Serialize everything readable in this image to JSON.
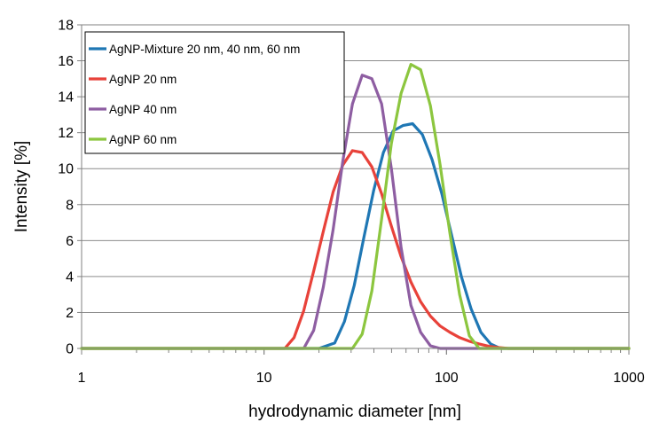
{
  "chart_data": {
    "type": "line",
    "xscale": "log",
    "xlabel": "hydrodynamic diameter [nm]",
    "ylabel": "Intensity [%]",
    "xlim": [
      1,
      1000
    ],
    "ylim": [
      0,
      18
    ],
    "xticks": [
      1,
      10,
      100,
      1000
    ],
    "xtick_labels": [
      "1",
      "10",
      "100",
      "1000"
    ],
    "yticks": [
      0,
      2,
      4,
      6,
      8,
      10,
      12,
      14,
      16,
      18
    ],
    "ytick_labels": [
      "0",
      "2",
      "4",
      "6",
      "8",
      "10",
      "12",
      "14",
      "16",
      "18"
    ],
    "grid": "horizontal",
    "legend_position": "top-left",
    "series": [
      {
        "name": "AgNP-Mixture 20 nm, 40 nm, 60 nm",
        "color": "#1f77b4",
        "points": [
          [
            1,
            0
          ],
          [
            20,
            0
          ],
          [
            24.4,
            0.3
          ],
          [
            27.6,
            1.5
          ],
          [
            31.2,
            3.5
          ],
          [
            35.3,
            6.2
          ],
          [
            39.9,
            8.8
          ],
          [
            45.1,
            10.9
          ],
          [
            51,
            12.1
          ],
          [
            57.7,
            12.4
          ],
          [
            65.2,
            12.5
          ],
          [
            73.7,
            11.9
          ],
          [
            83.4,
            10.5
          ],
          [
            94.3,
            8.6
          ],
          [
            106.7,
            6.3
          ],
          [
            120.6,
            4.0
          ],
          [
            136.4,
            2.2
          ],
          [
            154.3,
            0.9
          ],
          [
            174.5,
            0.25
          ],
          [
            197.3,
            0
          ],
          [
            1000,
            0
          ]
        ]
      },
      {
        "name": "AgNP 20 nm",
        "color": "#e8423a",
        "points": [
          [
            1,
            0
          ],
          [
            13,
            0
          ],
          [
            14.6,
            0.6
          ],
          [
            16.5,
            2.1
          ],
          [
            18.7,
            4.3
          ],
          [
            21.1,
            6.5
          ],
          [
            23.9,
            8.7
          ],
          [
            27,
            10.2
          ],
          [
            30.5,
            11.0
          ],
          [
            34.5,
            10.9
          ],
          [
            39,
            10.1
          ],
          [
            44.1,
            8.6
          ],
          [
            49.9,
            6.8
          ],
          [
            56.4,
            5.1
          ],
          [
            63.8,
            3.7
          ],
          [
            72.2,
            2.6
          ],
          [
            81.6,
            1.8
          ],
          [
            92.3,
            1.25
          ],
          [
            104.4,
            0.9
          ],
          [
            118,
            0.6
          ],
          [
            133.5,
            0.4
          ],
          [
            150.9,
            0.25
          ],
          [
            170.7,
            0.12
          ],
          [
            193,
            0.05
          ],
          [
            218.3,
            0
          ],
          [
            1000,
            0
          ]
        ]
      },
      {
        "name": "AgNP 40 nm",
        "color": "#8e5ea2",
        "points": [
          [
            1,
            0
          ],
          [
            16.5,
            0
          ],
          [
            18.7,
            1.0
          ],
          [
            21.1,
            3.4
          ],
          [
            23.9,
            6.6
          ],
          [
            27,
            10.4
          ],
          [
            30.5,
            13.6
          ],
          [
            34.5,
            15.2
          ],
          [
            39,
            15.0
          ],
          [
            44.1,
            13.6
          ],
          [
            49.9,
            10.0
          ],
          [
            56.4,
            5.6
          ],
          [
            63.8,
            2.4
          ],
          [
            72.2,
            0.9
          ],
          [
            81.6,
            0.15
          ],
          [
            92.3,
            0
          ],
          [
            1000,
            0
          ]
        ]
      },
      {
        "name": "AgNP 60 nm",
        "color": "#8cc63f",
        "points": [
          [
            1,
            0
          ],
          [
            30.5,
            0
          ],
          [
            34.5,
            0.8
          ],
          [
            39,
            3.2
          ],
          [
            44.1,
            7.2
          ],
          [
            49.9,
            11.4
          ],
          [
            56.4,
            14.2
          ],
          [
            63.8,
            15.8
          ],
          [
            72.2,
            15.5
          ],
          [
            81.6,
            13.5
          ],
          [
            92.3,
            10.2
          ],
          [
            104.4,
            6.4
          ],
          [
            118,
            3.0
          ],
          [
            133.5,
            0.7
          ],
          [
            150.9,
            0
          ],
          [
            1000,
            0
          ]
        ]
      }
    ]
  }
}
